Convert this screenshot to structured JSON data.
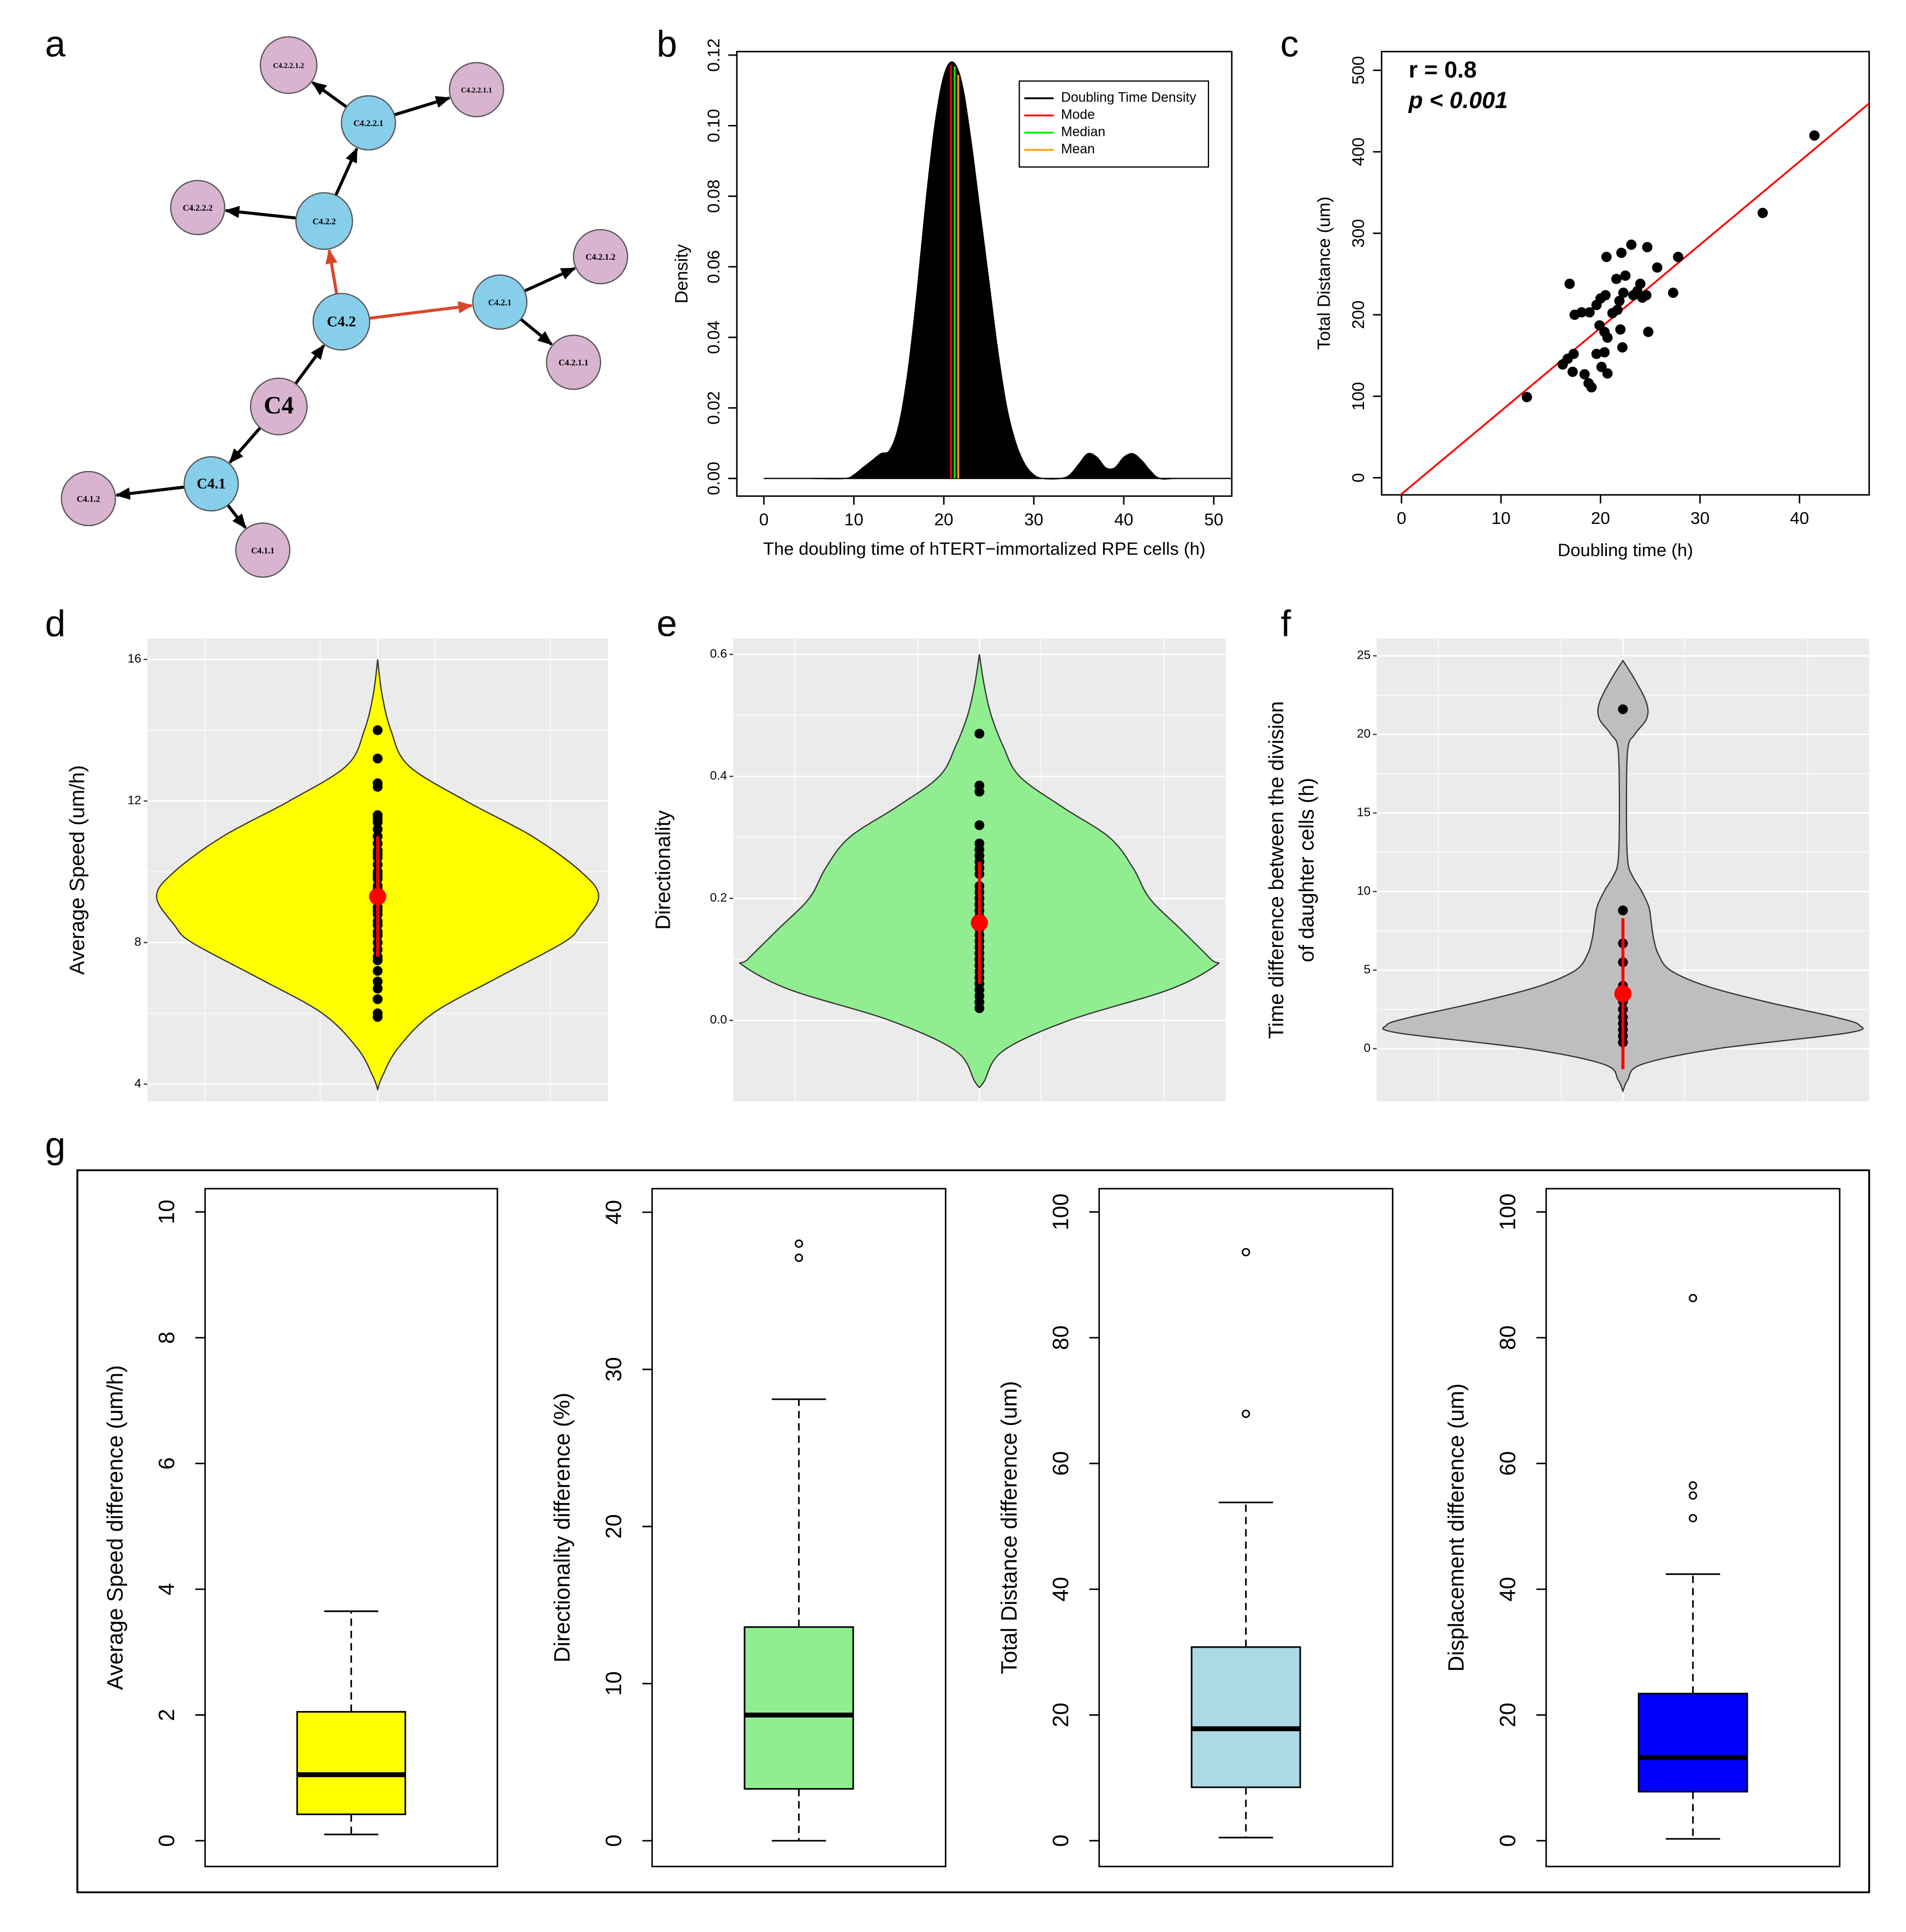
{
  "chart_data": [
    {
      "type": "network",
      "panel": "a",
      "nodes": [
        {
          "label": "C4",
          "color": "#d8b4d0"
        },
        {
          "label": "C4.1",
          "color": "#87ceeb"
        },
        {
          "label": "C4.2",
          "color": "#87ceeb"
        },
        {
          "label": "C4.1.2",
          "color": "#d8b4d0"
        },
        {
          "label": "C4.1.1",
          "color": "#d8b4d0"
        },
        {
          "label": "C4.2.2",
          "color": "#87ceeb"
        },
        {
          "label": "C4.2.1",
          "color": "#87ceeb"
        },
        {
          "label": "C4.2.2.1",
          "color": "#87ceeb"
        },
        {
          "label": "C4.2.2.2",
          "color": "#d8b4d0"
        },
        {
          "label": "C4.2.2.1.2",
          "color": "#d8b4d0"
        },
        {
          "label": "C4.2.2.1.1",
          "color": "#d8b4d0"
        },
        {
          "label": "C4.2.1.2",
          "color": "#d8b4d0"
        },
        {
          "label": "C4.2.1.1",
          "color": "#d8b4d0"
        }
      ],
      "edges": [
        {
          "from": 0,
          "to": 1,
          "color": "#000000"
        },
        {
          "from": 0,
          "to": 2,
          "color": "#000000"
        },
        {
          "from": 1,
          "to": 3,
          "color": "#000000"
        },
        {
          "from": 1,
          "to": 4,
          "color": "#000000"
        },
        {
          "from": 2,
          "to": 5,
          "color": "#d9472b"
        },
        {
          "from": 2,
          "to": 6,
          "color": "#d9472b"
        },
        {
          "from": 5,
          "to": 7,
          "color": "#000000"
        },
        {
          "from": 5,
          "to": 8,
          "color": "#000000"
        },
        {
          "from": 7,
          "to": 9,
          "color": "#000000"
        },
        {
          "from": 7,
          "to": 10,
          "color": "#000000"
        },
        {
          "from": 6,
          "to": 11,
          "color": "#000000"
        },
        {
          "from": 6,
          "to": 12,
          "color": "#000000"
        }
      ]
    },
    {
      "type": "density",
      "panel": "b",
      "name": "Doubling Time Density",
      "color": "#000000",
      "x_label": "The doubling time of hTERT−immortalized RPE cells (h)",
      "y_label": "Density",
      "x": [
        0,
        5,
        9,
        10,
        11,
        12,
        13,
        14,
        15,
        16,
        17,
        18,
        19,
        20,
        21,
        22,
        23,
        24,
        25,
        26,
        27,
        28,
        29,
        30,
        31,
        33,
        34,
        35,
        36,
        37,
        38,
        39,
        40,
        41,
        42,
        43,
        44,
        46,
        52
      ],
      "values": [
        0,
        0,
        0,
        0.001,
        0.003,
        0.005,
        0.007,
        0.008,
        0.015,
        0.03,
        0.052,
        0.078,
        0.1,
        0.114,
        0.118,
        0.112,
        0.096,
        0.076,
        0.056,
        0.036,
        0.02,
        0.01,
        0.004,
        0.001,
        0,
        0,
        0.001,
        0.004,
        0.007,
        0.006,
        0.003,
        0.003,
        0.006,
        0.007,
        0.005,
        0.002,
        0,
        0,
        0
      ],
      "lines": [
        {
          "name": "Mode",
          "color": "#ff0000",
          "value": 20.8
        },
        {
          "name": "Median",
          "color": "#00ee00",
          "value": 21.2
        },
        {
          "name": "Mean",
          "color": "#ffa500",
          "value": 21.6
        }
      ],
      "legend": "topright",
      "xlim": [
        -3,
        52
      ],
      "xticks": [
        0,
        10,
        20,
        30,
        40,
        50
      ],
      "ylim": [
        -0.005,
        0.121
      ],
      "yticks": [
        {
          "value": 0,
          "label": "0.00"
        },
        0.02,
        0.04,
        0.06,
        0.08,
        {
          "value": 0.1,
          "label": "0.10"
        },
        0.12
      ]
    },
    {
      "type": "scatter",
      "panel": "c",
      "color": "#000000",
      "x_label": "Doubling time (h)",
      "y_label": "Total Distance (um)",
      "annotations": [
        "r = 0.8",
        "p < 0.001"
      ],
      "x": [
        12.6,
        16.9,
        16.2,
        16.7,
        17.3,
        17.2,
        17.4,
        18.1,
        18.9,
        18.4,
        18.8,
        19.1,
        19.6,
        20.1,
        20.4,
        19.6,
        20,
        20.5,
        19.9,
        20.4,
        20.7,
        20.6,
        20.7,
        21.6,
        21.7,
        21.9,
        22.1,
        22,
        22.2,
        22.3,
        23.1,
        23.3,
        23.7,
        24,
        24.2,
        24.7,
        24.6,
        24.8,
        25.7,
        27.3,
        27.8,
        36.3,
        41.5,
        21.2,
        22.5
      ],
      "values": [
        99,
        238,
        139,
        146,
        152,
        130,
        200,
        203,
        203,
        127,
        116,
        111,
        152,
        136,
        154,
        212,
        220,
        224,
        187,
        179,
        172,
        271,
        128,
        244,
        206,
        217,
        276,
        182,
        160,
        227,
        286,
        224,
        229,
        238,
        221,
        283,
        224,
        179,
        258,
        227,
        271,
        325,
        420,
        202,
        248
      ],
      "fit": {
        "intercept": -20,
        "slope": 10.2,
        "color": "#ff0000"
      },
      "xlim": [
        -2,
        47
      ],
      "xticks": [
        0,
        10,
        20,
        30,
        40
      ],
      "ylim": [
        -21,
        523
      ],
      "yticks": [
        0,
        100,
        200,
        300,
        400,
        500
      ]
    },
    {
      "type": "violin",
      "panel": "d",
      "color": "#ffff00",
      "grid": true,
      "y_label": "Average Speed (um/h)",
      "violin": {
        "y": [
          16,
          15,
          14,
          13,
          12,
          11,
          10,
          9.3,
          8.5,
          8,
          7,
          6,
          5,
          4.2,
          3.85
        ],
        "width": [
          0,
          0.02,
          0.06,
          0.14,
          0.4,
          0.7,
          0.92,
          1,
          0.92,
          0.84,
          0.54,
          0.25,
          0.09,
          0.02,
          0
        ]
      },
      "points": [
        14,
        13.2,
        12.5,
        12.4,
        11.6,
        11.5,
        11.4,
        11.2,
        11,
        10.8,
        10.6,
        10.5,
        10.4,
        10.2,
        10,
        9.9,
        9.8,
        9.6,
        9.5,
        9.4,
        9.2,
        9,
        8.9,
        8.8,
        8.6,
        8.5,
        8.3,
        8.2,
        8,
        7.8,
        7.6,
        7.5,
        7.2,
        6.9,
        6.7,
        6.4,
        6,
        5.9
      ],
      "mean": 9.3,
      "error_range": [
        7.6,
        11
      ],
      "ylim": [
        3.51,
        16.59
      ],
      "yticks": [
        4,
        8,
        12,
        16
      ]
    },
    {
      "type": "violin",
      "panel": "e",
      "color": "#90ee90",
      "grid": true,
      "y_label": "Directionality",
      "violin": {
        "y": [
          0.6,
          0.55,
          0.5,
          0.45,
          0.4,
          0.35,
          0.3,
          0.25,
          0.2,
          0.15,
          0.1,
          0.09,
          0.05,
          0,
          -0.05,
          -0.1,
          -0.11
        ],
        "width": [
          0,
          0.02,
          0.05,
          0.1,
          0.17,
          0.35,
          0.55,
          0.65,
          0.72,
          0.85,
          0.98,
          1,
          0.8,
          0.38,
          0.1,
          0.02,
          0
        ]
      },
      "points": [
        0.47,
        0.385,
        0.375,
        0.32,
        0.29,
        0.28,
        0.27,
        0.26,
        0.25,
        0.24,
        0.22,
        0.21,
        0.2,
        0.19,
        0.18,
        0.17,
        0.16,
        0.15,
        0.14,
        0.13,
        0.12,
        0.11,
        0.1,
        0.09,
        0.08,
        0.07,
        0.06,
        0.05,
        0.04,
        0.03,
        0.02
      ],
      "mean": 0.16,
      "error_range": [
        0.06,
        0.26
      ],
      "ylim": [
        -0.133,
        0.626
      ],
      "yticks": [
        {
          "value": 0,
          "label": "0.0"
        },
        0.2,
        0.4,
        0.6
      ]
    },
    {
      "type": "violin",
      "panel": "f",
      "color": "#bebebe",
      "grid": true,
      "y_label": [
        "Time difference between the division",
        "of daughter cells (h)"
      ],
      "violin": {
        "y": [
          24.7,
          23.5,
          22,
          21,
          20,
          19,
          15,
          12,
          11,
          10,
          9,
          8,
          7,
          6,
          5,
          4,
          3,
          2,
          1.5,
          1,
          0,
          -1,
          -2,
          -2.7
        ],
        "width": [
          0,
          0.05,
          0.1,
          0.1,
          0.05,
          0.02,
          0.015,
          0.02,
          0.04,
          0.08,
          0.11,
          0.12,
          0.13,
          0.15,
          0.2,
          0.35,
          0.6,
          0.9,
          1,
          0.95,
          0.4,
          0.08,
          0.02,
          0
        ]
      },
      "points": [
        21.6,
        8.8,
        6.7,
        5.5,
        4,
        3.6,
        3,
        2.5,
        2,
        1.6,
        1.2,
        0.8,
        0.4
      ],
      "mean": 3.5,
      "error_range": [
        -1.3,
        8.3
      ],
      "ylim": [
        -3.36,
        26.1
      ],
      "yticks": [
        0,
        5,
        10,
        15,
        20,
        25
      ]
    },
    {
      "type": "box",
      "panel": "g",
      "color": "#ffff00",
      "y_label": "Average Speed difference (um/h)",
      "stats": {
        "min": 0.1,
        "q1": 0.42,
        "median": 1.05,
        "q3": 2.05,
        "max": 3.65
      },
      "outliers": [],
      "ylim": [
        -0.41,
        10.37
      ],
      "yticks": [
        0,
        2,
        4,
        6,
        8,
        10
      ]
    },
    {
      "type": "box",
      "color": "#90ee90",
      "y_label": "Directionality difference (%)",
      "stats": {
        "min": 0,
        "q1": 3.3,
        "median": 8,
        "q3": 13.6,
        "max": 28.1
      },
      "outliers": [
        37.1,
        38
      ],
      "ylim": [
        -1.64,
        41.5
      ],
      "yticks": [
        0,
        10,
        20,
        30,
        40
      ]
    },
    {
      "type": "box",
      "color": "#add8e6",
      "y_label": "Total Distance difference (um)",
      "stats": {
        "min": 0.5,
        "q1": 8.5,
        "median": 17.8,
        "q3": 30.8,
        "max": 53.8
      },
      "outliers": [
        67.9,
        93.6
      ],
      "ylim": [
        -4.1,
        103.7
      ],
      "yticks": [
        0,
        20,
        40,
        60,
        80,
        100
      ]
    },
    {
      "type": "box",
      "color": "#0000ff",
      "y_label": "Displacement difference (um)",
      "stats": {
        "min": 0.3,
        "q1": 7.8,
        "median": 13.2,
        "q3": 23.4,
        "max": 42.4
      },
      "outliers": [
        51.3,
        54.9,
        56.5,
        86.3
      ],
      "ylim": [
        -4.1,
        103.7
      ],
      "yticks": [
        0,
        20,
        40,
        60,
        80,
        100
      ]
    }
  ]
}
